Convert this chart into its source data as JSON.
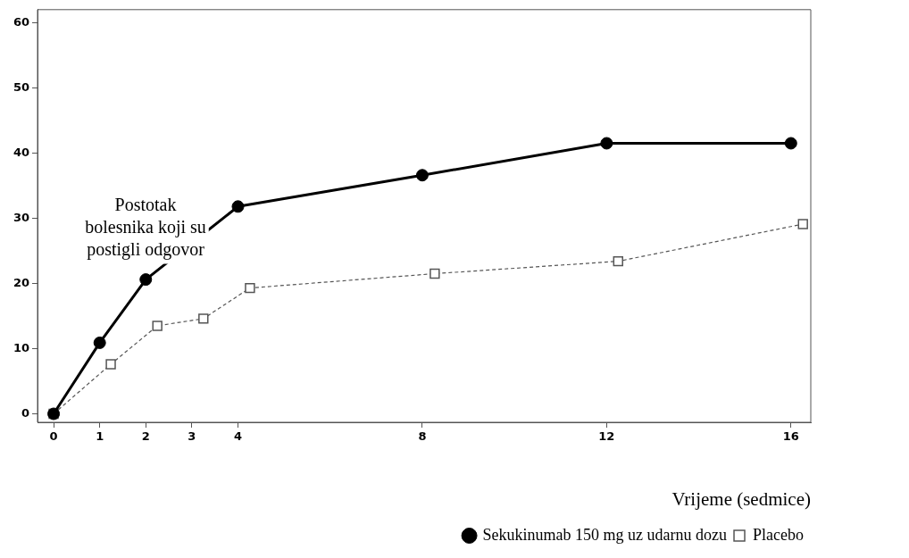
{
  "chart_data": {
    "type": "line",
    "xlabel": "Vrijeme (sedmice)",
    "annotations": [
      "Postotak bolesnika koji su postigli odgovor"
    ],
    "xlim": [
      -0.35,
      16.43
    ],
    "xticks": [
      0,
      1,
      2,
      3,
      4,
      8,
      12,
      16
    ],
    "ylim": [
      -1.3,
      62
    ],
    "yticks": [
      0,
      10,
      20,
      30,
      40,
      50,
      60
    ],
    "grid": false,
    "legend": "bottom right",
    "series": [
      {
        "name": "Sekukinumab 150 mg uz udarnu dozu",
        "color": "#000000",
        "marker": "circle",
        "line_style": "solid",
        "x": [
          0,
          1,
          2,
          4,
          8,
          12,
          16
        ],
        "values": [
          0,
          10.9,
          20.6,
          31.8,
          36.6,
          41.5,
          41.5
        ]
      },
      {
        "name": "Placebo",
        "color": "#555555",
        "marker": "square",
        "line_style": "dashed",
        "x": [
          0,
          1.24,
          2.25,
          3.25,
          4.26,
          8.27,
          12.25,
          16.26
        ],
        "values": [
          0,
          7.6,
          13.5,
          14.6,
          19.3,
          21.5,
          23.4,
          29.1
        ]
      }
    ]
  }
}
